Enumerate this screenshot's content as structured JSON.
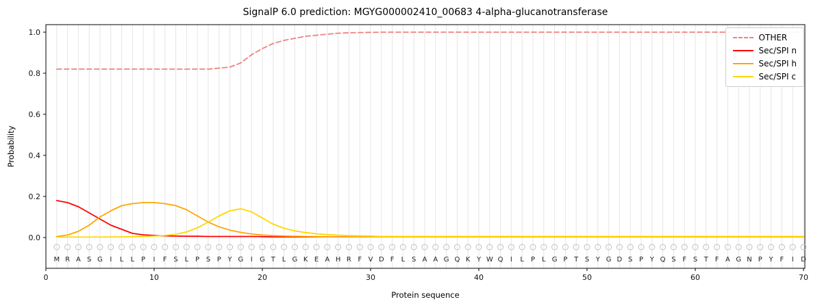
{
  "chart_data": {
    "type": "line",
    "title": "SignalP 6.0 prediction: MGYG000002410_00683 4-alpha-glucanotransferase",
    "xlabel": "Protein sequence",
    "ylabel": "Probability",
    "xlim": [
      0,
      70
    ],
    "ylim": [
      -0.15,
      1.04
    ],
    "x_ticks": [
      0,
      10,
      20,
      30,
      40,
      50,
      60,
      70
    ],
    "y_ticks": [
      0.0,
      0.2,
      0.4,
      0.6,
      0.8,
      1.0
    ],
    "grid": "vertical line at each residue",
    "legend_position": "upper right",
    "sequence": "MRASGILLPIFSLPSPYGIGTLGKEAHRFVDFLSAAGQKYWQILPLGPTSYGDSPYQSFSTFAGNPYFID",
    "marker_row": "open circle above each residue letter",
    "series": [
      {
        "name": "OTHER",
        "color": "#f08080",
        "dash": true,
        "values": [
          0.82,
          0.82,
          0.82,
          0.82,
          0.82,
          0.82,
          0.82,
          0.82,
          0.82,
          0.82,
          0.82,
          0.82,
          0.82,
          0.82,
          0.82,
          0.825,
          0.83,
          0.85,
          0.89,
          0.92,
          0.945,
          0.96,
          0.97,
          0.98,
          0.985,
          0.99,
          0.995,
          0.997,
          0.998,
          0.999,
          1,
          1,
          1,
          1,
          1,
          1,
          1,
          1,
          1,
          1,
          1,
          1,
          1,
          1,
          1,
          1,
          1,
          1,
          1,
          1,
          1,
          1,
          1,
          1,
          1,
          1,
          1,
          1,
          1,
          1,
          1,
          1,
          1,
          1,
          1,
          1,
          1,
          1,
          1,
          1
        ]
      },
      {
        "name": "Sec/SPI n",
        "color": "#ff0000",
        "dash": false,
        "values": [
          0.18,
          0.17,
          0.15,
          0.12,
          0.09,
          0.06,
          0.04,
          0.02,
          0.013,
          0.01,
          0.008,
          0.007,
          0.006,
          0.006,
          0.005,
          0.005,
          0.005,
          0.005,
          0.005,
          0.004,
          0.003,
          0.003,
          0.003,
          0.003,
          0.003,
          0.003,
          0.003,
          0.003,
          0.003,
          0.003,
          0.003,
          0.003,
          0.003,
          0.003,
          0.003,
          0.003,
          0.003,
          0.003,
          0.003,
          0.003,
          0.003,
          0.003,
          0.003,
          0.003,
          0.003,
          0.003,
          0.003,
          0.003,
          0.003,
          0.003,
          0.003,
          0.003,
          0.003,
          0.003,
          0.003,
          0.003,
          0.003,
          0.003,
          0.003,
          0.003,
          0.003,
          0.003,
          0.003,
          0.003,
          0.003,
          0.003,
          0.003,
          0.003,
          0.003,
          0.003
        ]
      },
      {
        "name": "Sec/SPI h",
        "color": "#ffa500",
        "dash": false,
        "values": [
          0.005,
          0.012,
          0.03,
          0.06,
          0.1,
          0.13,
          0.155,
          0.165,
          0.17,
          0.17,
          0.165,
          0.155,
          0.135,
          0.105,
          0.075,
          0.052,
          0.036,
          0.025,
          0.017,
          0.012,
          0.009,
          0.007,
          0.006,
          0.005,
          0.004,
          0.003,
          0.003,
          0.003,
          0.003,
          0.003,
          0.003,
          0.003,
          0.003,
          0.003,
          0.003,
          0.003,
          0.003,
          0.003,
          0.003,
          0.003,
          0.003,
          0.003,
          0.003,
          0.003,
          0.003,
          0.003,
          0.003,
          0.003,
          0.003,
          0.003,
          0.003,
          0.003,
          0.003,
          0.003,
          0.003,
          0.003,
          0.003,
          0.003,
          0.003,
          0.003,
          0.003,
          0.003,
          0.003,
          0.003,
          0.003,
          0.003,
          0.003,
          0.003,
          0.003,
          0.003
        ]
      },
      {
        "name": "Sec/SPI c",
        "color": "#ffd700",
        "dash": false,
        "values": [
          0.002,
          0.002,
          0.002,
          0.002,
          0.002,
          0.003,
          0.003,
          0.004,
          0.005,
          0.007,
          0.01,
          0.016,
          0.027,
          0.047,
          0.075,
          0.105,
          0.13,
          0.14,
          0.125,
          0.095,
          0.065,
          0.045,
          0.032,
          0.024,
          0.018,
          0.014,
          0.011,
          0.009,
          0.008,
          0.007,
          0.005,
          0.005,
          0.005,
          0.005,
          0.005,
          0.005,
          0.005,
          0.005,
          0.005,
          0.005,
          0.005,
          0.005,
          0.005,
          0.005,
          0.005,
          0.005,
          0.005,
          0.005,
          0.005,
          0.005,
          0.005,
          0.005,
          0.005,
          0.005,
          0.005,
          0.005,
          0.005,
          0.005,
          0.005,
          0.005,
          0.005,
          0.005,
          0.005,
          0.005,
          0.005,
          0.005,
          0.005,
          0.005,
          0.005,
          0.005
        ]
      }
    ]
  }
}
